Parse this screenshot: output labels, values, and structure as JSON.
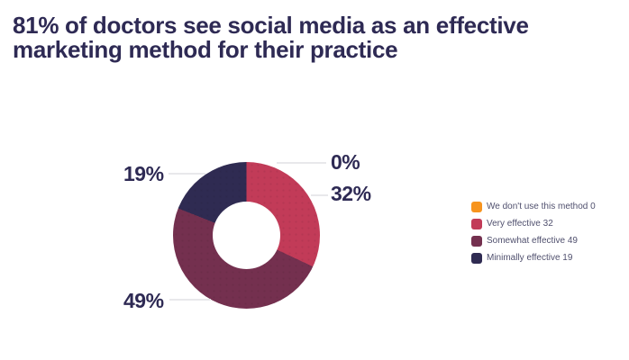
{
  "title": {
    "lines": [
      "81% of doctors see social media as an effective",
      "marketing method for their practice"
    ]
  },
  "chart_data": {
    "type": "pie",
    "subtype": "donut",
    "title": "81% of doctors see social media as an effective marketing method for their practice",
    "categories": [
      "We don't use this method",
      "Very effective",
      "Somewhat effective",
      "Minimally effective"
    ],
    "values": [
      0,
      32,
      49,
      19
    ],
    "colors": [
      "#F7941E",
      "#C23B58",
      "#74304F",
      "#2F2B52"
    ],
    "unit": "percent",
    "start_angle_deg": 0,
    "direction": "clockwise",
    "inner_radius_ratio": 0.46,
    "legend_position": "right",
    "callouts": [
      {
        "text": "0%"
      },
      {
        "text": "32%"
      },
      {
        "text": "49%"
      },
      {
        "text": "19%"
      }
    ]
  },
  "legend": {
    "items": [
      {
        "text": "We don't use this method 0",
        "color": "#F7941E"
      },
      {
        "text": "Very effective 32",
        "color": "#C23B58"
      },
      {
        "text": "Somewhat effective 49",
        "color": "#74304F"
      },
      {
        "text": "Minimally effective 19",
        "color": "#2F2B52"
      }
    ]
  },
  "colors": {
    "title_text": "#2E2A54",
    "legend_text": "#50506E",
    "leader_line": "#E8E8EB",
    "background": "#FFFFFF"
  }
}
